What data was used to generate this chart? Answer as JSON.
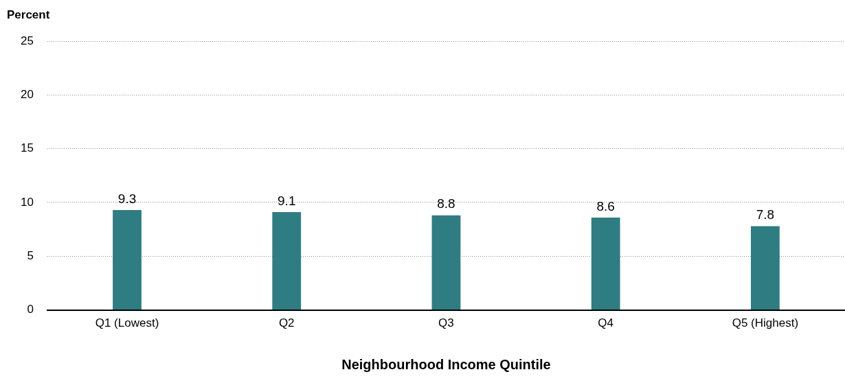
{
  "chart_data": {
    "type": "bar",
    "xlabel": "Neighbourhood Income Quintile",
    "ylabel": "Percent",
    "categories": [
      "Q1 (Lowest)",
      "Q2",
      "Q3",
      "Q4",
      "Q5 (Highest)"
    ],
    "values": [
      9.3,
      9.1,
      8.8,
      8.6,
      7.8
    ],
    "color": "#2e7d82",
    "ylim": [
      0,
      25
    ],
    "yticks": [
      0,
      5,
      10,
      15,
      20,
      25
    ],
    "grid": "y",
    "data_labels": true,
    "legend": false
  }
}
